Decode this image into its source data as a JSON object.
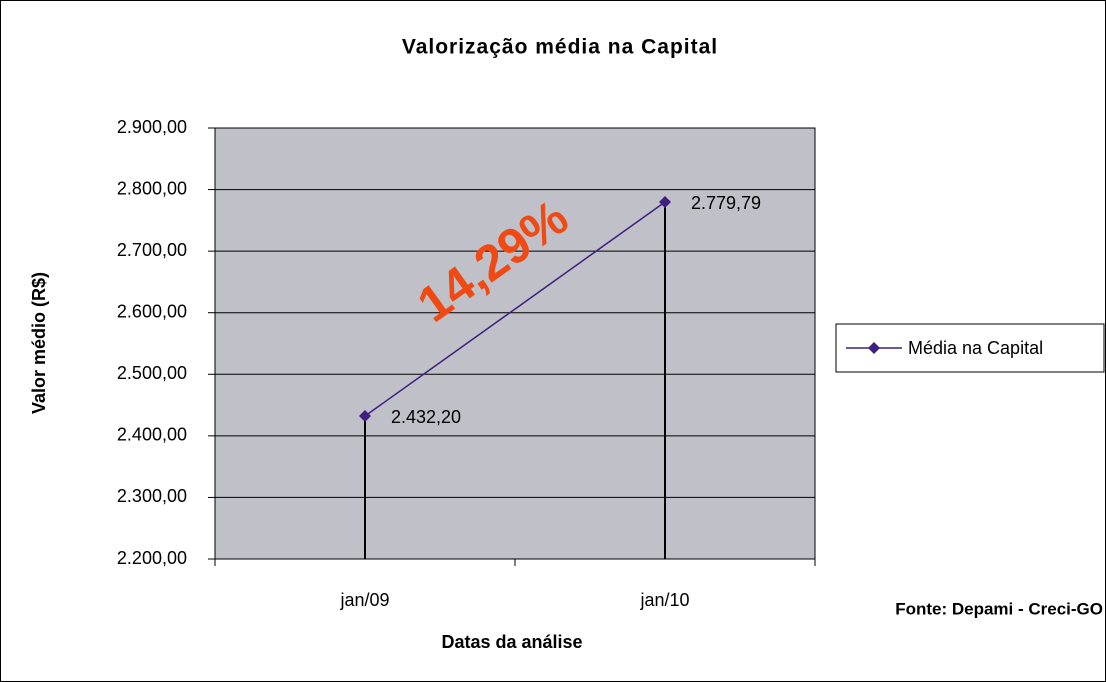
{
  "chart_data": {
    "type": "line",
    "title": "Valorização média na Capital",
    "x_label": "Datas da análise",
    "y_label": "Valor médio (R$)",
    "categories": [
      "jan/09",
      "jan/10"
    ],
    "series": [
      {
        "name": "Média na Capital",
        "color": "#3f1f7f",
        "values": [
          2432.2,
          2779.79
        ],
        "value_labels": [
          "2.432,20",
          "2.779,79"
        ]
      }
    ],
    "ylim": [
      2200,
      2900
    ],
    "yticks": [
      {
        "value": 2200,
        "label": "2.200,00"
      },
      {
        "value": 2300,
        "label": "2.300,00"
      },
      {
        "value": 2400,
        "label": "2.400,00"
      },
      {
        "value": 2500,
        "label": "2.500,00"
      },
      {
        "value": 2600,
        "label": "2.600,00"
      },
      {
        "value": 2700,
        "label": "2.700,00"
      },
      {
        "value": 2800,
        "label": "2.800,00"
      },
      {
        "value": 2900,
        "label": "2.900,00"
      }
    ],
    "grid": true,
    "plot_background": "#c0c0c8",
    "legend": "right",
    "annotations": [
      {
        "text": "14,29%",
        "color": "#f04a14"
      },
      {
        "text": "Fonte: Depami - Creci-GO"
      }
    ]
  }
}
